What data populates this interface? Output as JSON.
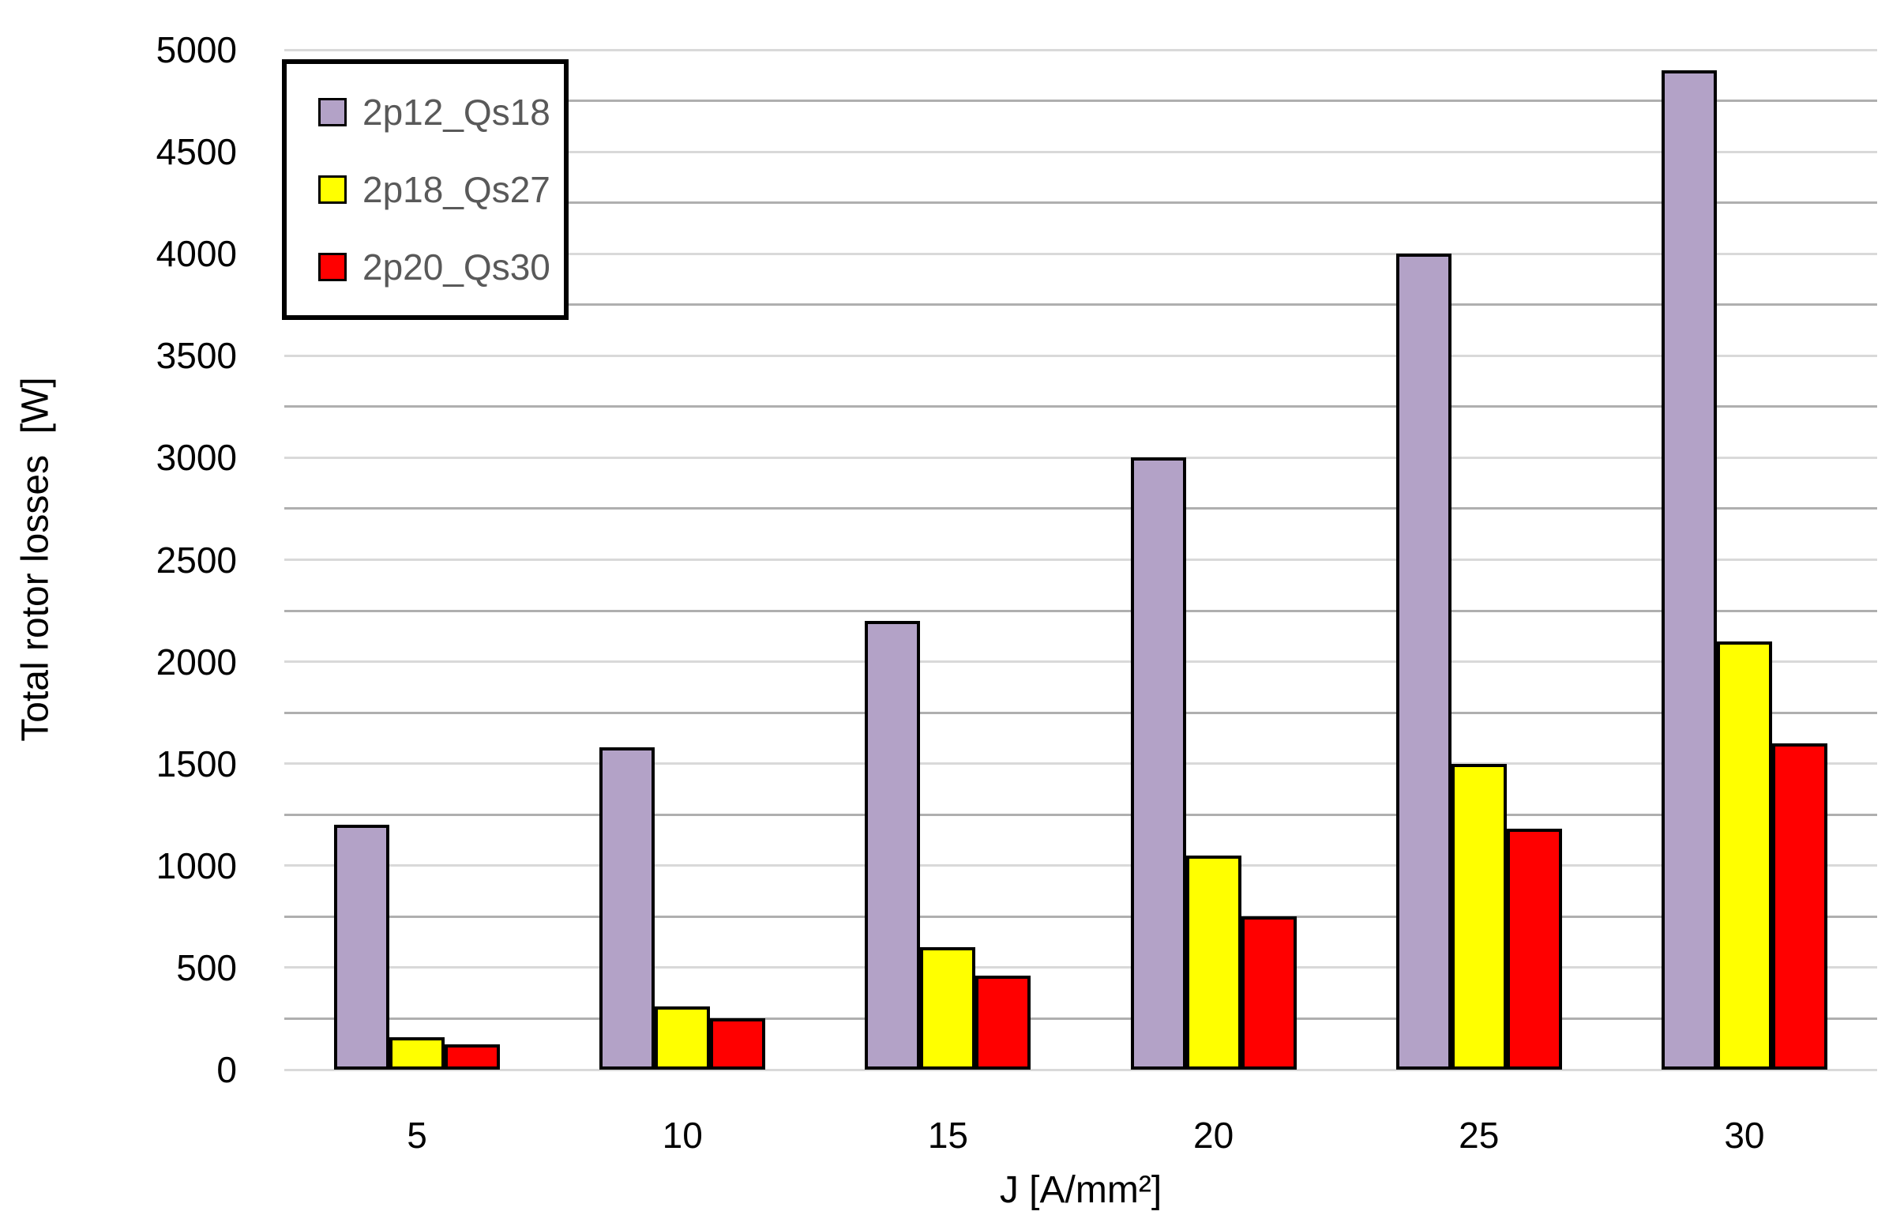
{
  "chart_data": {
    "type": "bar",
    "title": "",
    "xlabel": "J [A/mm²]",
    "ylabel": "Total rotor losses  [W]",
    "categories": [
      "5",
      "10",
      "15",
      "20",
      "25",
      "30"
    ],
    "series": [
      {
        "name": "2p12_Qs18",
        "color": "#B3A2C7",
        "values": [
          1200,
          1580,
          2200,
          3000,
          4000,
          4900
        ]
      },
      {
        "name": "2p18_Qs27",
        "color": "#FFFF00",
        "values": [
          160,
          310,
          600,
          1050,
          1500,
          2100
        ]
      },
      {
        "name": "2p20_Qs30",
        "color": "#FF0000",
        "values": [
          125,
          250,
          460,
          750,
          1180,
          1600
        ]
      }
    ],
    "ylim": [
      0,
      5000
    ],
    "y_tick_step": 500,
    "gridline_step": 250,
    "y_tick_labels": [
      "0",
      "500",
      "1000",
      "1500",
      "2000",
      "2500",
      "3000",
      "3500",
      "4000",
      "4500",
      "5000"
    ],
    "grid": true,
    "legend_position": "top-left",
    "colors": {
      "background": "#FFFFFF",
      "bar_border": "#000000",
      "gridline_major": "#D9D9D9",
      "gridline_minor": "#AFAFAF",
      "tick_label": "#000000",
      "axis_title": "#000000",
      "legend_text": "#595959",
      "legend_border": "#000000"
    }
  }
}
